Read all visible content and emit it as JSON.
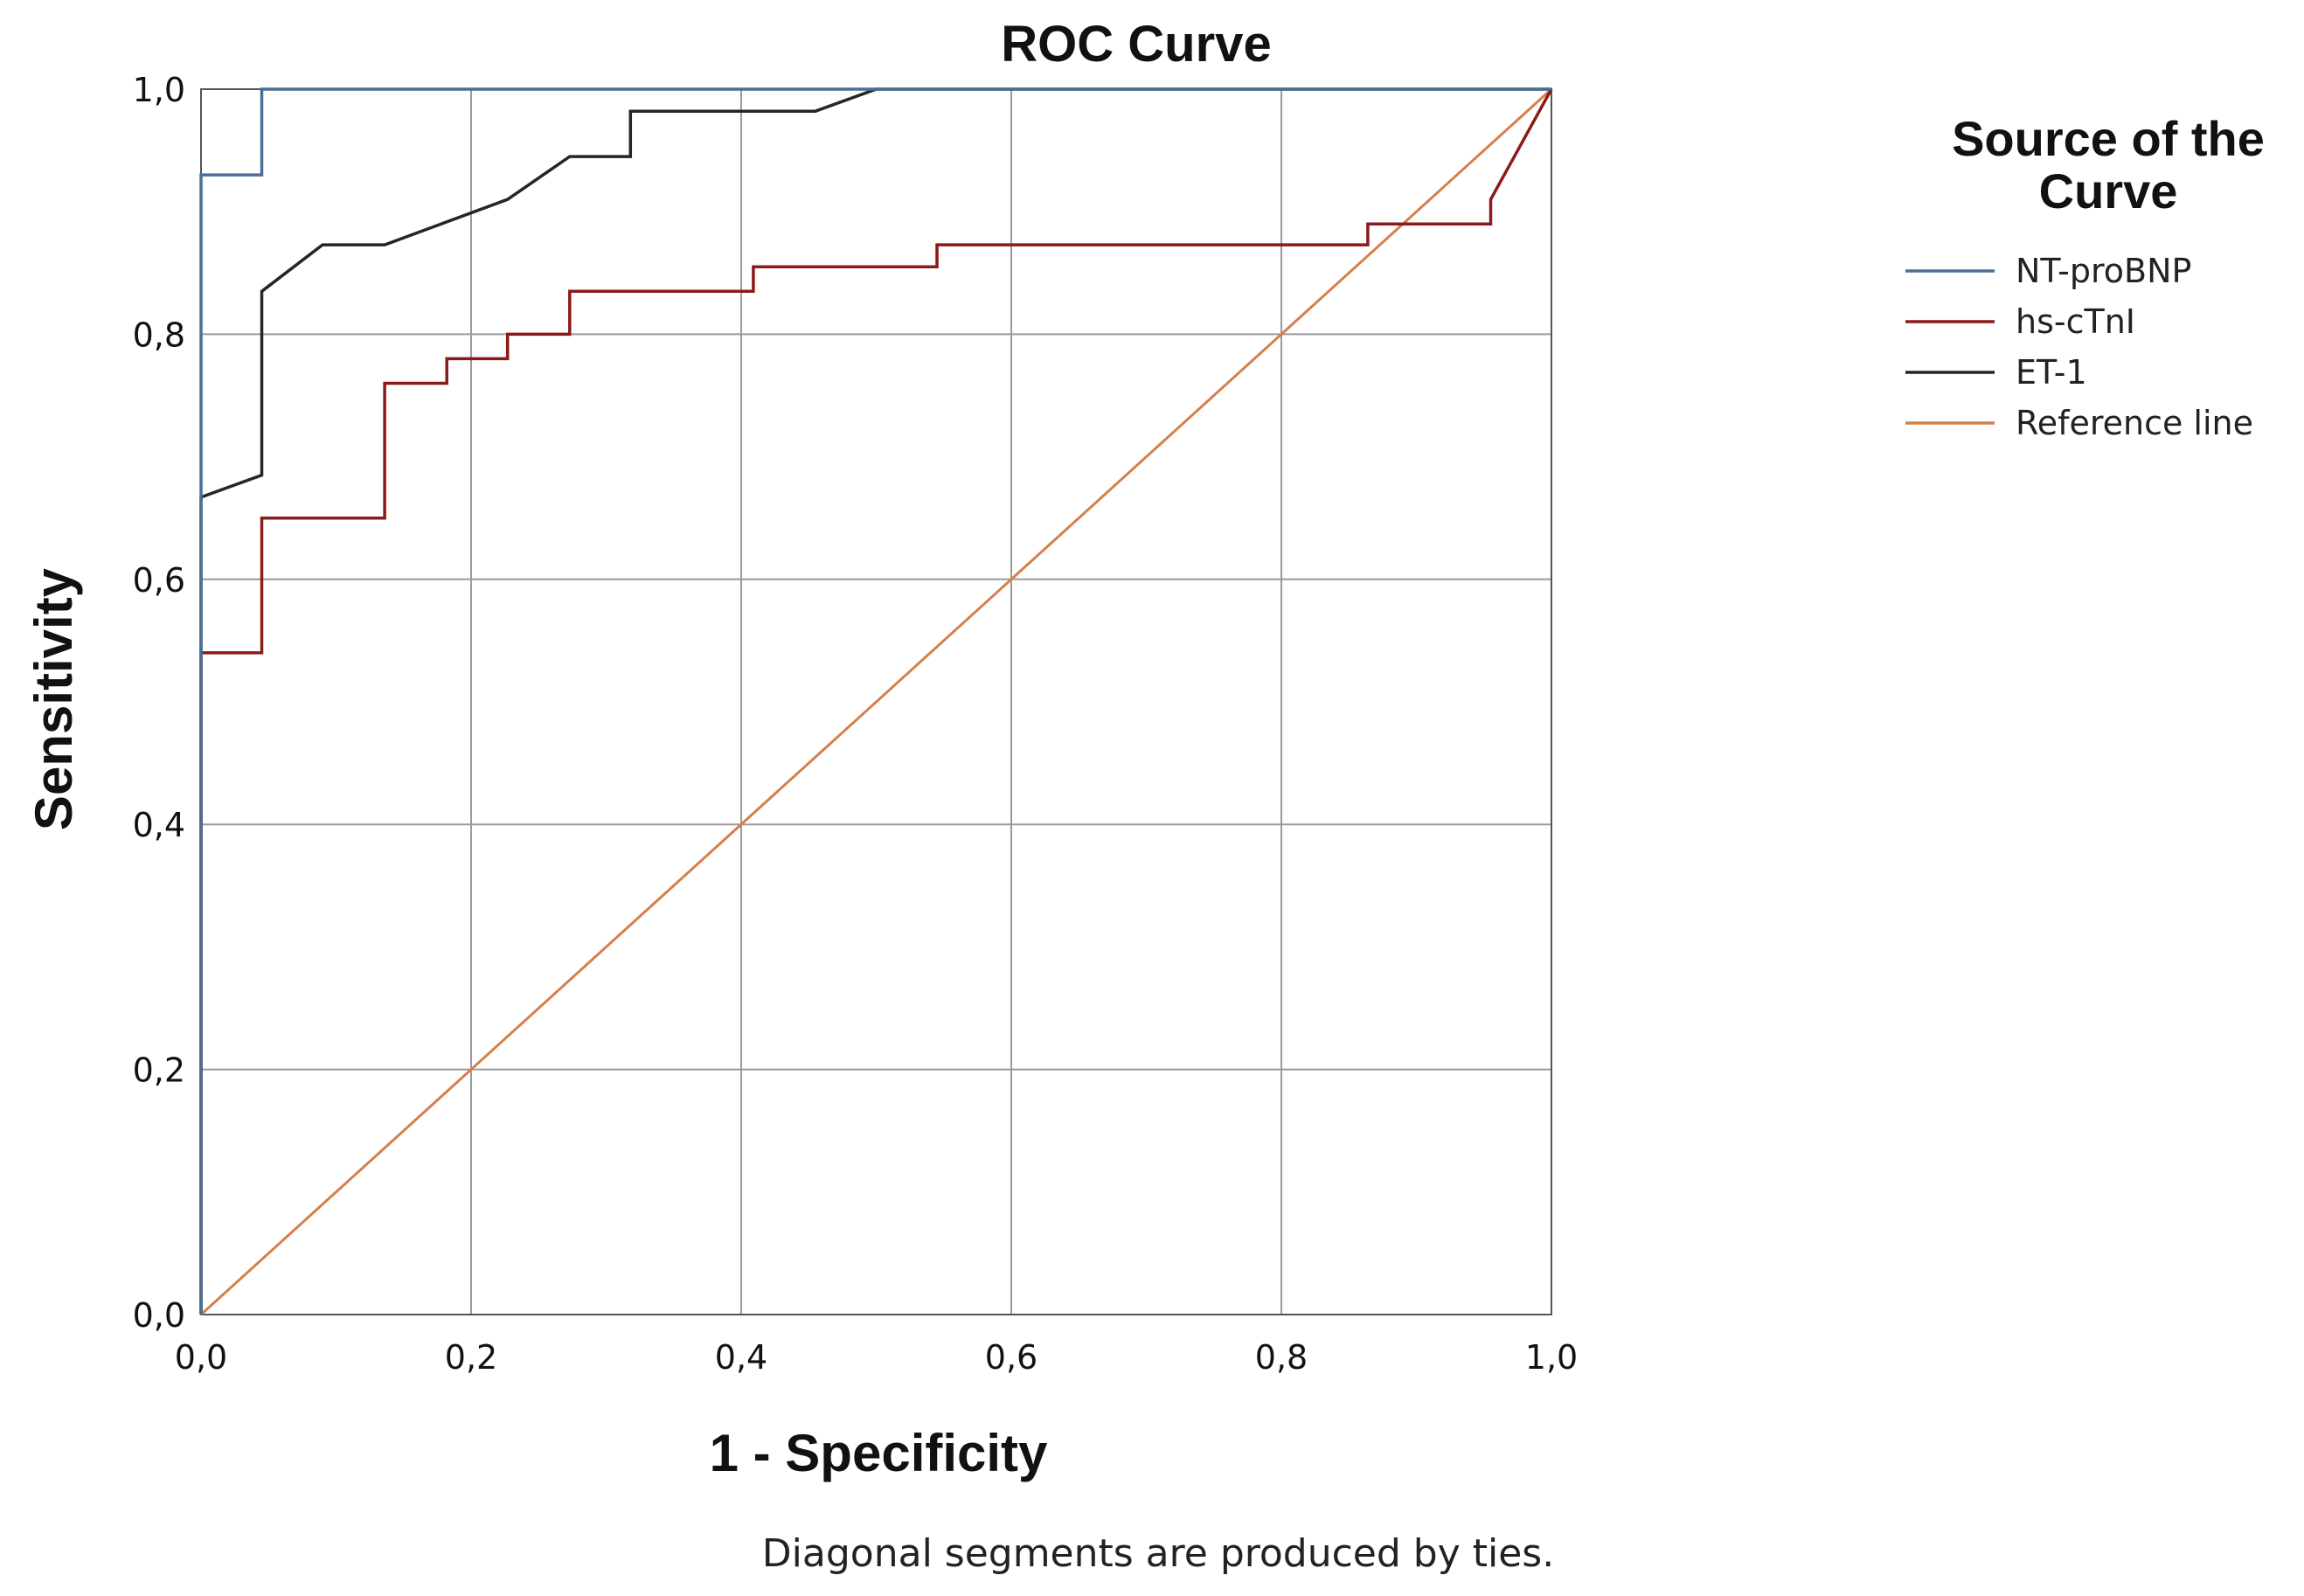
{
  "chart_data": {
    "type": "line",
    "title": "ROC Curve",
    "xlabel": "1 - Specificity",
    "ylabel": "Sensitivity",
    "xlim": [
      0,
      1
    ],
    "ylim": [
      0,
      1
    ],
    "grid": true,
    "x_ticks": [
      "0,0",
      "0,2",
      "0,4",
      "0,6",
      "0,8",
      "1,0"
    ],
    "y_ticks": [
      "0,0",
      "0,2",
      "0,4",
      "0,6",
      "0,8",
      "1,0"
    ],
    "tick_values": [
      0,
      0.2,
      0.4,
      0.6,
      0.8,
      1.0
    ],
    "legend": {
      "title_line1": "Source of the",
      "title_line2": "Curve",
      "position": "right"
    },
    "footnote": "Diagonal segments are produced by ties.",
    "series": [
      {
        "name": "NT-proBNP",
        "color": "#4a6f96",
        "points": [
          [
            0,
            0
          ],
          [
            0,
            0.93
          ],
          [
            0.045,
            0.93
          ],
          [
            0.045,
            1.0
          ],
          [
            1.0,
            1.0
          ]
        ]
      },
      {
        "name": "hs-cTnI",
        "color": "#8b1a1a",
        "points": [
          [
            0,
            0
          ],
          [
            0,
            0.54
          ],
          [
            0.045,
            0.54
          ],
          [
            0.045,
            0.65
          ],
          [
            0.136,
            0.65
          ],
          [
            0.136,
            0.76
          ],
          [
            0.182,
            0.76
          ],
          [
            0.182,
            0.78
          ],
          [
            0.227,
            0.78
          ],
          [
            0.227,
            0.8
          ],
          [
            0.273,
            0.8
          ],
          [
            0.273,
            0.835
          ],
          [
            0.409,
            0.835
          ],
          [
            0.409,
            0.855
          ],
          [
            0.545,
            0.855
          ],
          [
            0.545,
            0.873
          ],
          [
            0.864,
            0.873
          ],
          [
            0.864,
            0.89
          ],
          [
            0.955,
            0.89
          ],
          [
            0.955,
            0.91
          ],
          [
            1.0,
            1.0
          ]
        ]
      },
      {
        "name": "ET-1",
        "color": "#1e2a1e",
        "points": [
          [
            0,
            0
          ],
          [
            0,
            0.667
          ],
          [
            0.045,
            0.685
          ],
          [
            0.045,
            0.835
          ],
          [
            0.09,
            0.873
          ],
          [
            0.136,
            0.873
          ],
          [
            0.227,
            0.91
          ],
          [
            0.273,
            0.945
          ],
          [
            0.318,
            0.945
          ],
          [
            0.318,
            0.982
          ],
          [
            0.455,
            0.982
          ],
          [
            0.5,
            1.0
          ],
          [
            1.0,
            1.0
          ]
        ]
      },
      {
        "name": "Reference line",
        "color": "#d4804a",
        "points": [
          [
            0,
            0
          ],
          [
            1,
            1
          ]
        ]
      }
    ]
  }
}
